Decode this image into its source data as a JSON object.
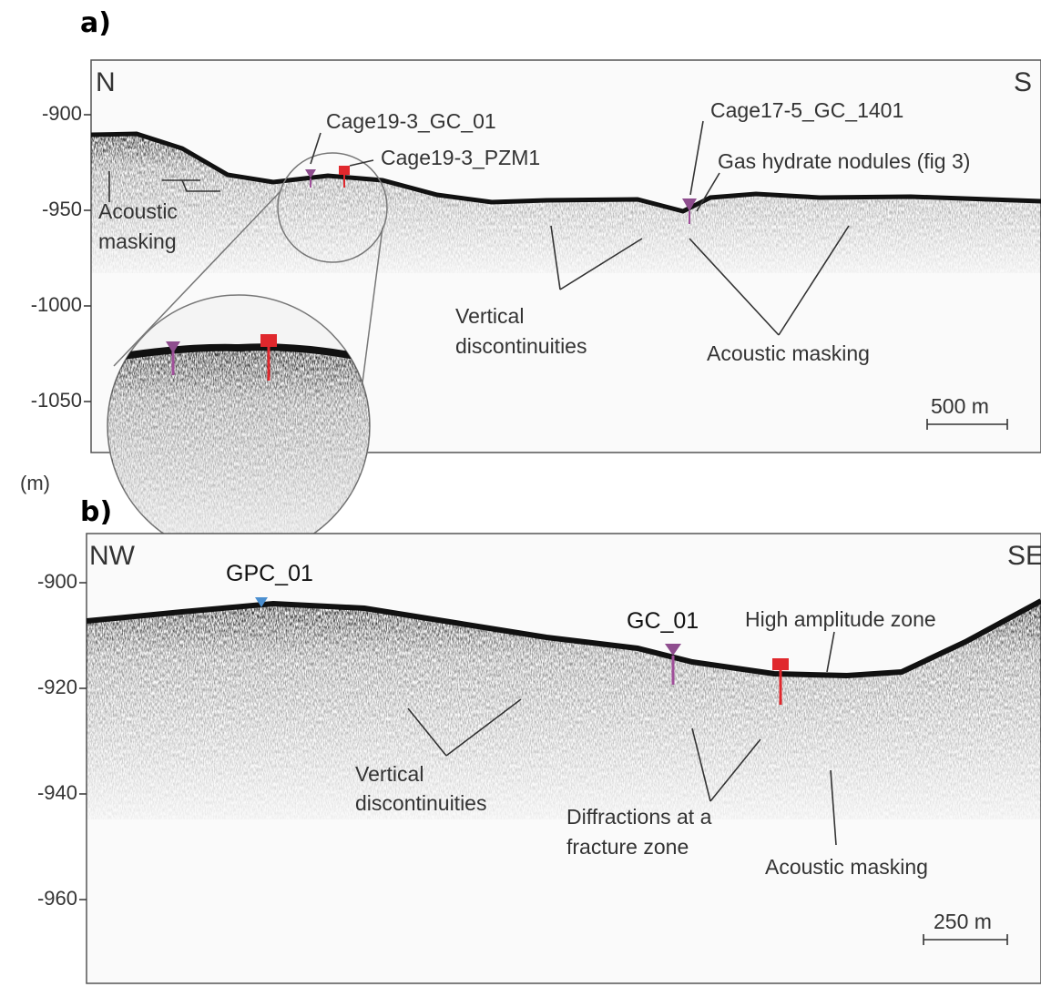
{
  "unit_label": "(m)",
  "panels": [
    {
      "label": "a)",
      "corner_left": "N",
      "corner_right": "S",
      "yticks": [
        -900,
        -950,
        -1000,
        -1050
      ],
      "annotations": {
        "core1": "Cage19-3_GC_01",
        "core2": "Cage19-3_PZM1",
        "core3": "Cage17-5_GC_1401",
        "nodules": "Gas hydrate nodules (fig 3)",
        "masking_left": [
          "Acoustic",
          "masking"
        ],
        "vertical": [
          "Vertical",
          "discontinuities"
        ],
        "masking_right": "Acoustic masking"
      },
      "scale_bar": "500 m"
    },
    {
      "label": "b)",
      "corner_left": "NW",
      "corner_right": "SE",
      "yticks": [
        -900,
        -920,
        -940,
        -960
      ],
      "annotations": {
        "core1": "GPC_01",
        "core2": "GC_01",
        "high_amp": "High amplitude zone",
        "vertical": [
          "Vertical",
          "discontinuities"
        ],
        "diffractions": [
          "Diffractions at a",
          "fracture zone"
        ],
        "masking": "Acoustic masking"
      },
      "scale_bar": "250 m"
    }
  ]
}
